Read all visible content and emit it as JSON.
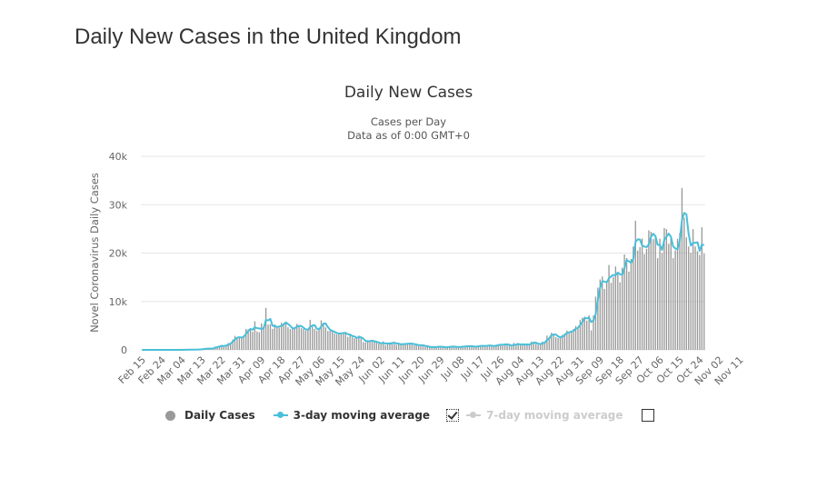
{
  "page": {
    "title": "Daily New Cases in the United Kingdom"
  },
  "chart_data": {
    "type": "bar",
    "title": "Daily New Cases",
    "subtitle_lines": [
      "Cases per Day",
      "Data as of 0:00 GMT+0"
    ],
    "xlabel": "",
    "ylabel": "Novel Coronavirus Daily Cases",
    "ylim": [
      0,
      40000
    ],
    "y_ticks": [
      0,
      10000,
      20000,
      30000,
      40000
    ],
    "y_tick_labels": [
      "0",
      "10k",
      "20k",
      "30k",
      "40k"
    ],
    "grid": true,
    "start_date": "Feb 15",
    "x_tick_labels": [
      "Feb 15",
      "Feb 24",
      "Mar 04",
      "Mar 13",
      "Mar 22",
      "Mar 31",
      "Apr 09",
      "Apr 18",
      "Apr 27",
      "May 06",
      "May 15",
      "May 24",
      "Jun 02",
      "Jun 11",
      "Jun 20",
      "Jun 29",
      "Jul 08",
      "Jul 17",
      "Jul 26",
      "Aug 04",
      "Aug 13",
      "Aug 22",
      "Aug 31",
      "Sep 09",
      "Sep 18",
      "Sep 27",
      "Oct 06",
      "Oct 15",
      "Oct 24",
      "Nov 02",
      "Nov 11"
    ],
    "x_tick_interval_days": 9,
    "legend_placement": "bottom",
    "series": [
      {
        "name": "Daily Cases",
        "kind": "bar",
        "color": "#999999",
        "visible": true,
        "values": [
          0,
          0,
          0,
          0,
          0,
          0,
          0,
          0,
          0,
          0,
          0,
          0,
          0,
          0,
          3,
          4,
          7,
          13,
          12,
          35,
          30,
          48,
          43,
          67,
          46,
          65,
          134,
          152,
          208,
          342,
          251,
          152,
          407,
          676,
          643,
          714,
          1035,
          665,
          967,
          1427,
          1452,
          2129,
          2885,
          2546,
          2433,
          2619,
          3009,
          4324,
          4244,
          4450,
          3735,
          5903,
          3802,
          3634,
          5491,
          4344,
          8681,
          5233,
          5288,
          4342,
          5252,
          4603,
          4617,
          5599,
          5525,
          5850,
          4676,
          4301,
          4451,
          4583,
          5386,
          4913,
          4463,
          4309,
          3996,
          4076,
          6201,
          4806,
          4339,
          3985,
          4406,
          6111,
          5614,
          4649,
          3896,
          3923,
          3877,
          3403,
          3242,
          3446,
          3560,
          3450,
          3534,
          2684,
          3287,
          2615,
          2412,
          2445,
          2959,
          2405,
          1625,
          1557,
          2013,
          1887,
          1805,
          1650,
          1557,
          1326,
          1205,
          1741,
          1003,
          1266,
          1541,
          1425,
          1514,
          1056,
          1279,
          1115,
          1221,
          1346,
          1218,
          1295,
          1346,
          958,
          1004,
          1032,
          829,
          1006,
          652,
          624,
          630,
          537,
          576,
          581,
          820,
          581,
          530,
          512,
          650,
          687,
          642,
          726,
          546,
          538,
          681,
          768,
          668,
          827,
          796,
          685,
          580,
          763,
          814,
          878,
          743,
          871,
          938,
          938,
          758,
          728,
          1062,
          1148,
          950,
          1040,
          1313,
          1009,
          894,
          713,
          1441,
          1089,
          1182,
          1012,
          1288,
          1033,
          1039,
          1184,
          1715,
          1522,
          1276,
          1041,
          1276,
          1735,
          1406,
          2948,
          2659,
          3539,
          3330,
          2621,
          2460,
          2659,
          3105,
          3395,
          3991,
          3497,
          3899,
          4322,
          4926,
          4368,
          6178,
          6634,
          6874,
          6042,
          7143,
          4044,
          7108,
          11000,
          12872,
          14542,
          15166,
          12594,
          14162,
          17540,
          13864,
          15072,
          17233,
          15650,
          13972,
          16982,
          19724,
          18980,
          16171,
          18804,
          21331,
          26688,
          20530,
          21242,
          23012,
          19790,
          20890,
          24701,
          24405,
          22885,
          23254,
          18950,
          22961,
          20018,
          25177,
          24957,
          21915,
          23287,
          18950,
          20572,
          22950,
          24141,
          33470,
          27301,
          23254,
          21350,
          20051,
          24957,
          21363,
          20412,
          19609,
          25329,
          19875
        ]
      },
      {
        "name": "3-day moving average",
        "kind": "line",
        "color": "#49bfd9",
        "visible": true
      },
      {
        "name": "7-day moving average",
        "kind": "line",
        "color": "#cccccc",
        "visible": false
      }
    ]
  },
  "legend": {
    "items": [
      {
        "label": "Daily Cases",
        "icon": "circle-marker-icon",
        "color": "#999999"
      },
      {
        "label": "3-day moving average",
        "icon": "line-marker-icon",
        "color": "#49bfd9",
        "checkbox_checked": true
      },
      {
        "label": "7-day moving average",
        "icon": "line-marker-icon",
        "color": "#cccccc",
        "checkbox_checked": false
      }
    ]
  }
}
